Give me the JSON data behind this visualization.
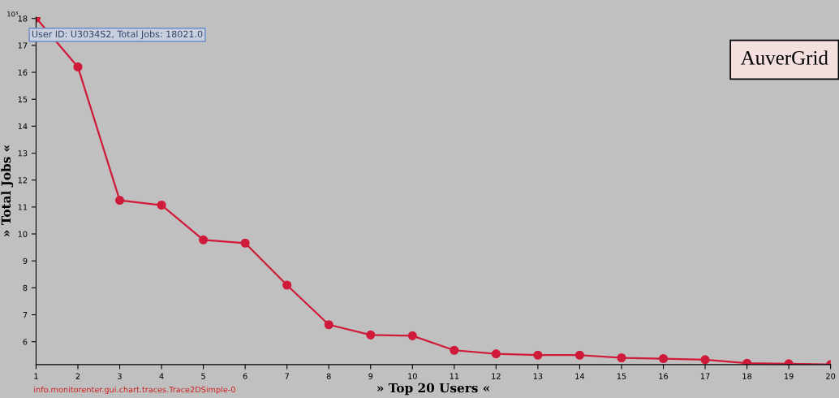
{
  "chart_data": {
    "type": "line",
    "xlabel": "» Top 20 Users «",
    "ylabel": "» Total Jobs «",
    "x": [
      1,
      2,
      3,
      4,
      5,
      6,
      7,
      8,
      9,
      10,
      11,
      12,
      13,
      14,
      15,
      16,
      17,
      18,
      19,
      20
    ],
    "series": [
      {
        "color": "#d01a3a",
        "values": [
          18.02,
          16.2,
          11.25,
          11.07,
          9.78,
          9.66,
          8.1,
          6.63,
          6.25,
          6.22,
          5.68,
          5.55,
          5.5,
          5.5,
          5.4,
          5.37,
          5.33,
          5.2,
          5.18,
          5.15
        ]
      }
    ],
    "xlim": [
      1,
      20
    ],
    "xticks": [
      1,
      2,
      3,
      4,
      5,
      6,
      7,
      8,
      9,
      10,
      11,
      12,
      13,
      14,
      15,
      16,
      17,
      18,
      19,
      20
    ],
    "ylim": [
      5.15,
      18.05
    ],
    "yticks": [
      6,
      7,
      8,
      9,
      10,
      11,
      12,
      13,
      14,
      15,
      16,
      17,
      18
    ],
    "grid": false,
    "legend": false,
    "marker": "circle",
    "line_style": "solid",
    "annotations": [
      "10³",
      {
        "text": "User ID: U3034S2, Total Jobs: 18021.0",
        "x": 1,
        "y": 18.02
      },
      "AuverGrid",
      "info.monitorenter.gui.chart.traces.Trace2DSimple-0"
    ]
  }
}
